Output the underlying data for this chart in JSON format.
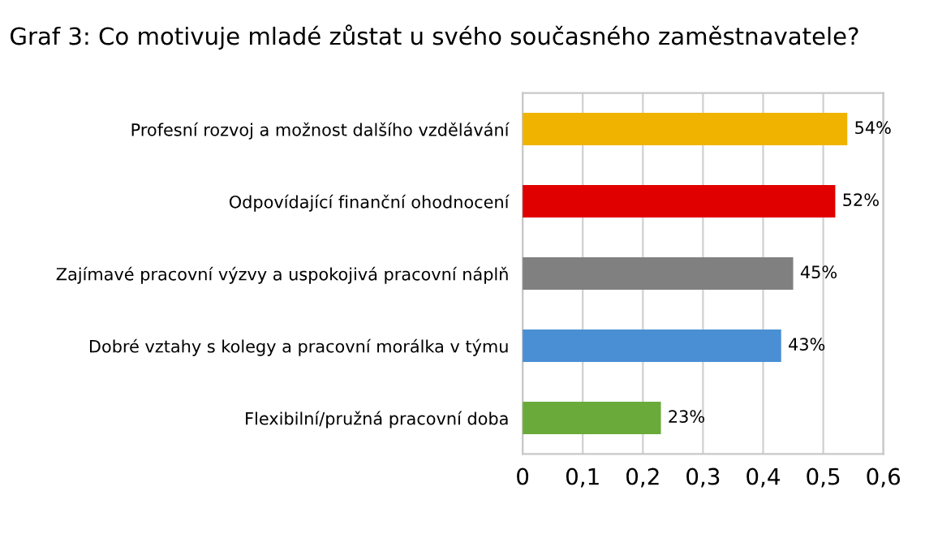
{
  "chart_data": {
    "type": "bar",
    "orientation": "horizontal",
    "title": "Graf 3: Co motivuje mladé zůstat u svého současného zaměstnavatele?",
    "categories": [
      "Profesní rozvoj a možnost dalšího vzdělávání",
      "Odpovídající finanční ohodnocení",
      "Zajímavé pracovní výzvy a uspokojivá pracovní náplň",
      "Dobré vztahy s kolegy a pracovní morálka v týmu",
      "Flexibilní/pružná pracovní doba"
    ],
    "values": [
      0.54,
      0.52,
      0.45,
      0.43,
      0.23
    ],
    "value_labels": [
      "54%",
      "52%",
      "45%",
      "43%",
      "23%"
    ],
    "colors": [
      "#f0b400",
      "#e00000",
      "#808080",
      "#4a8fd4",
      "#6aaa3a"
    ],
    "xlim": [
      0,
      0.6
    ],
    "xticks": [
      0,
      {
        "value": 0.1,
        "label": "0,1"
      },
      {
        "value": 0.2,
        "label": "0,2"
      },
      {
        "value": 0.3,
        "label": "0,3"
      },
      {
        "value": 0.4,
        "label": "0,4"
      },
      {
        "value": 0.5,
        "label": "0,5"
      },
      {
        "value": 0.6,
        "label": "0,6"
      }
    ],
    "grid": "x"
  }
}
